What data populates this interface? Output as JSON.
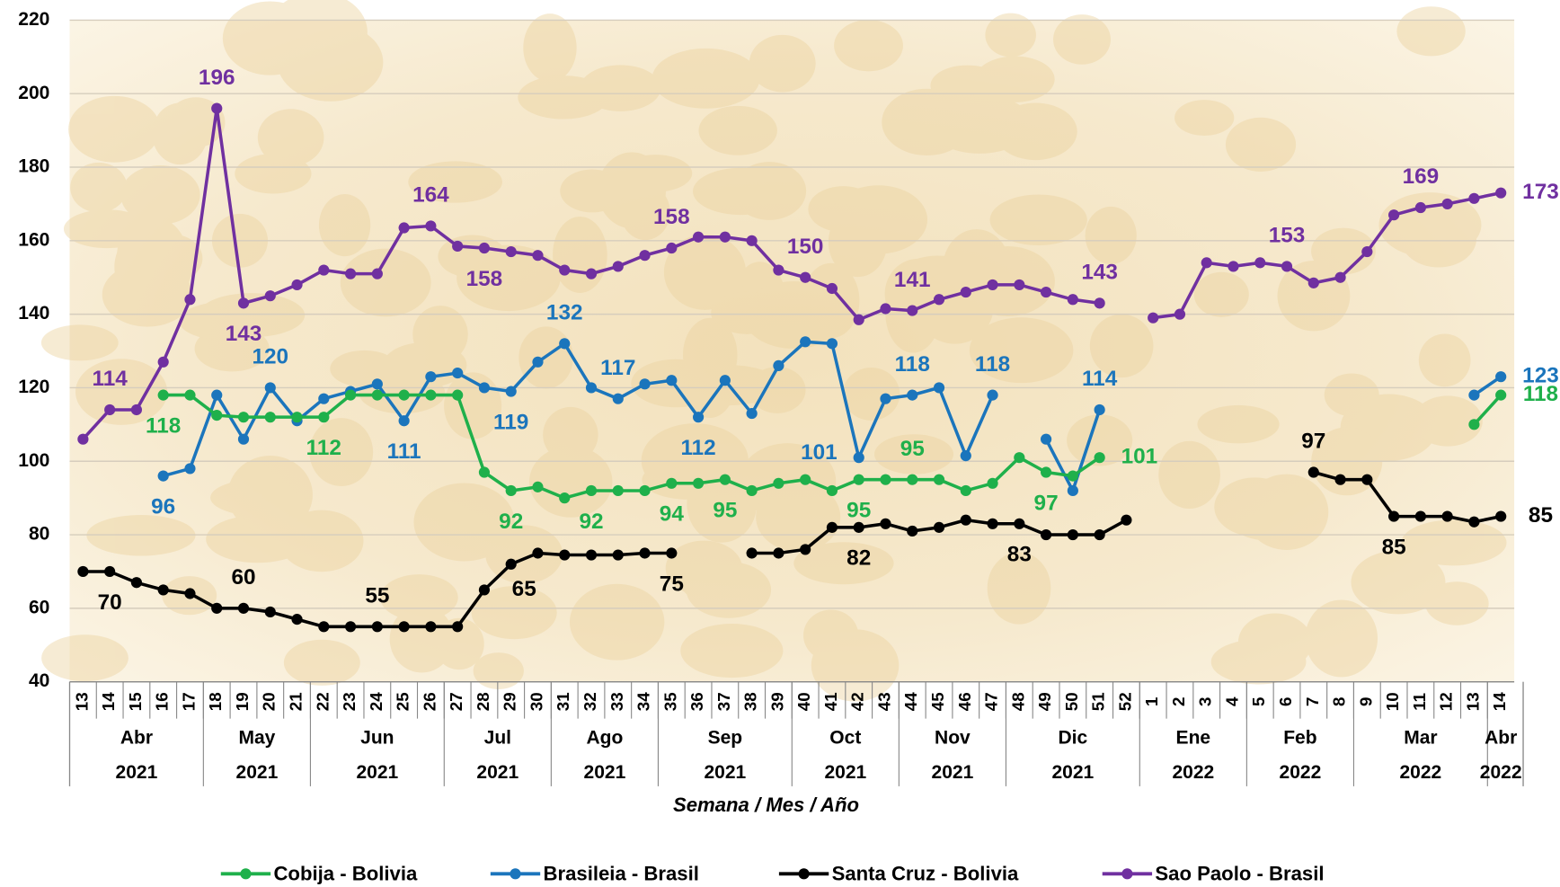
{
  "chart_data": {
    "type": "line",
    "xlabel": "Semana / Mes / Año",
    "categories": [
      13,
      14,
      15,
      16,
      17,
      18,
      19,
      20,
      21,
      22,
      23,
      24,
      25,
      26,
      27,
      28,
      29,
      30,
      31,
      32,
      33,
      34,
      35,
      36,
      37,
      38,
      39,
      40,
      41,
      42,
      43,
      44,
      45,
      46,
      47,
      48,
      49,
      50,
      51,
      52,
      1,
      2,
      3,
      4,
      5,
      6,
      7,
      8,
      9,
      10,
      11,
      12,
      13,
      14
    ],
    "x_groups": [
      {
        "month": "Abr",
        "year": "2021",
        "count": 5
      },
      {
        "month": "May",
        "year": "2021",
        "count": 4
      },
      {
        "month": "Jun",
        "year": "2021",
        "count": 5
      },
      {
        "month": "Jul",
        "year": "2021",
        "count": 4
      },
      {
        "month": "Ago",
        "year": "2021",
        "count": 4
      },
      {
        "month": "Sep",
        "year": "2021",
        "count": 5
      },
      {
        "month": "Oct",
        "year": "2021",
        "count": 4
      },
      {
        "month": "Nov",
        "year": "2021",
        "count": 4
      },
      {
        "month": "Dic",
        "year": "2021",
        "count": 5
      },
      {
        "month": "Ene",
        "year": "2022",
        "count": 4
      },
      {
        "month": "Feb",
        "year": "2022",
        "count": 4
      },
      {
        "month": "Mar",
        "year": "2022",
        "count": 5
      },
      {
        "month": "Abr",
        "year": "2022",
        "count": 1
      }
    ],
    "ylim": [
      40,
      220
    ],
    "yticks": [
      40,
      60,
      80,
      100,
      120,
      140,
      160,
      180,
      200,
      220
    ],
    "grid": true,
    "legend": "bottom",
    "series": [
      {
        "name": "Cobija - Bolivia",
        "color": "#1fb04b",
        "values": [
          null,
          null,
          null,
          118,
          118,
          112.5,
          112,
          112,
          112,
          112,
          118,
          118,
          118,
          118,
          118,
          97,
          92,
          93,
          90,
          92,
          92,
          92,
          94,
          94,
          95,
          92,
          94,
          95,
          92,
          95,
          95,
          95,
          95,
          92,
          94,
          101,
          97,
          96,
          101,
          null,
          null,
          null,
          null,
          null,
          null,
          null,
          null,
          null,
          null,
          null,
          null,
          null,
          110,
          118
        ],
        "value_labels": [
          null,
          null,
          null,
          "118",
          null,
          null,
          null,
          null,
          null,
          "112",
          null,
          null,
          null,
          null,
          null,
          null,
          "92",
          null,
          null,
          "92",
          null,
          null,
          "94",
          null,
          "95",
          null,
          null,
          null,
          null,
          "95",
          null,
          "95",
          null,
          null,
          null,
          null,
          "97",
          null,
          "101",
          null,
          null,
          null,
          null,
          null,
          null,
          null,
          null,
          null,
          null,
          null,
          null,
          null,
          null,
          "118"
        ]
      },
      {
        "name": "Brasileia - Brasil",
        "color": "#1b75bc",
        "values": [
          null,
          null,
          null,
          96,
          98,
          118,
          106,
          120,
          111,
          117,
          119,
          121,
          111,
          123,
          124,
          120,
          119,
          127,
          132,
          120,
          117,
          121,
          122,
          112,
          122,
          113,
          126,
          132.5,
          132,
          101,
          117,
          118,
          120,
          101.5,
          118,
          null,
          106,
          92,
          114,
          null,
          null,
          null,
          null,
          null,
          null,
          null,
          null,
          null,
          null,
          null,
          null,
          null,
          118,
          123
        ],
        "value_labels": [
          null,
          null,
          null,
          "96",
          null,
          null,
          null,
          "120",
          null,
          null,
          null,
          null,
          "111",
          null,
          null,
          null,
          "119",
          null,
          "132",
          null,
          "117",
          null,
          null,
          "112",
          null,
          null,
          null,
          null,
          null,
          "101",
          null,
          "118",
          null,
          null,
          "118",
          null,
          null,
          null,
          "114",
          null,
          null,
          null,
          null,
          null,
          null,
          null,
          null,
          null,
          null,
          null,
          null,
          null,
          null,
          "123"
        ]
      },
      {
        "name": "Santa Cruz - Bolivia",
        "color": "#000000",
        "values": [
          70,
          70,
          67,
          65,
          64,
          60,
          60,
          59,
          57,
          55,
          55,
          55,
          55,
          55,
          55,
          65,
          72,
          75,
          74.5,
          74.5,
          74.5,
          75,
          75,
          null,
          null,
          75,
          75,
          76,
          82,
          82,
          83,
          81,
          82,
          84,
          83,
          83,
          80,
          80,
          80,
          84,
          null,
          null,
          null,
          null,
          null,
          null,
          97,
          95,
          95,
          85,
          85,
          85,
          83.5,
          85
        ],
        "value_labels": [
          null,
          "70",
          null,
          null,
          null,
          null,
          "60",
          null,
          null,
          null,
          null,
          "55",
          null,
          null,
          null,
          "65",
          null,
          null,
          null,
          null,
          null,
          null,
          "75",
          null,
          null,
          null,
          null,
          null,
          null,
          "82",
          null,
          null,
          null,
          null,
          null,
          "83",
          null,
          null,
          null,
          null,
          null,
          null,
          null,
          null,
          null,
          null,
          "97",
          null,
          null,
          "85",
          null,
          null,
          null,
          "85"
        ]
      },
      {
        "name": "Sao Paolo - Brasil",
        "color": "#7030a0",
        "values": [
          106,
          114,
          114,
          127,
          144,
          196,
          143,
          145,
          148,
          152,
          151,
          151,
          163.5,
          164,
          158.5,
          158,
          157,
          156,
          152,
          151,
          153,
          156,
          158,
          161,
          161,
          160,
          152,
          150,
          147,
          138.5,
          141.5,
          141,
          144,
          146,
          148,
          148,
          146,
          144,
          143,
          null,
          139,
          140,
          154,
          153,
          154,
          153,
          148.5,
          150,
          157,
          167,
          169,
          170,
          171.5,
          173
        ],
        "value_labels": [
          null,
          "114",
          null,
          null,
          null,
          "196",
          "143",
          null,
          null,
          null,
          null,
          null,
          null,
          "164",
          null,
          "158",
          null,
          null,
          null,
          null,
          null,
          null,
          "158",
          null,
          null,
          null,
          null,
          "150",
          null,
          null,
          null,
          "141",
          null,
          null,
          null,
          null,
          null,
          null,
          "143",
          null,
          null,
          null,
          null,
          null,
          null,
          "153",
          null,
          null,
          null,
          null,
          "169",
          null,
          null,
          "173"
        ]
      }
    ]
  }
}
